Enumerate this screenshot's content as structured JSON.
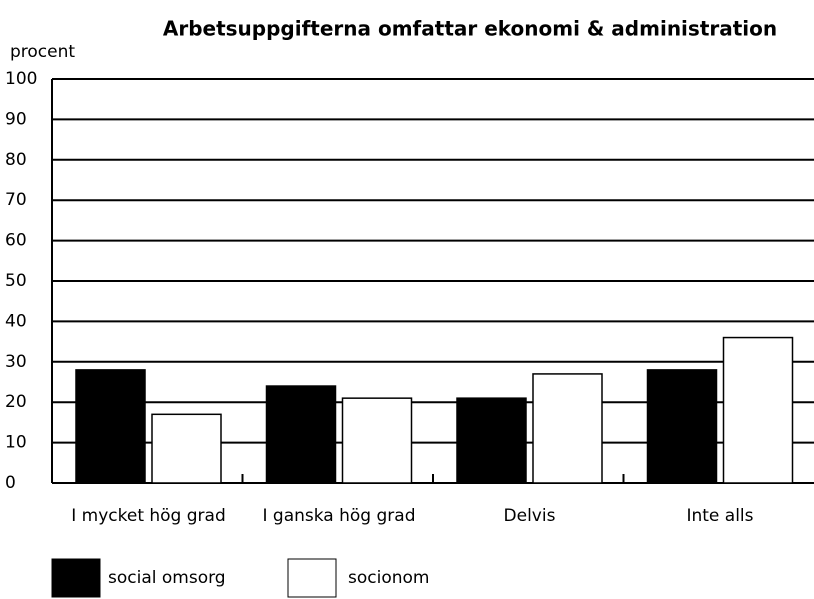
{
  "chart_data": {
    "type": "bar",
    "title": "Arbetsuppgifterna omfattar ekonomi & administration",
    "y_label": "procent",
    "categories": [
      "I mycket hög grad",
      "I ganska hög grad",
      "Delvis",
      "Inte alls"
    ],
    "series": [
      {
        "name": "social omsorg",
        "color": "#000000",
        "values": [
          28,
          24,
          21,
          28
        ]
      },
      {
        "name": "socionom",
        "color": "#ffffff",
        "values": [
          17,
          21,
          27,
          36
        ]
      }
    ],
    "ylim": [
      0,
      100
    ],
    "yticks": [
      0,
      10,
      20,
      30,
      40,
      50,
      60,
      70,
      80,
      90,
      100
    ],
    "grid": true,
    "legend": "bottom"
  }
}
